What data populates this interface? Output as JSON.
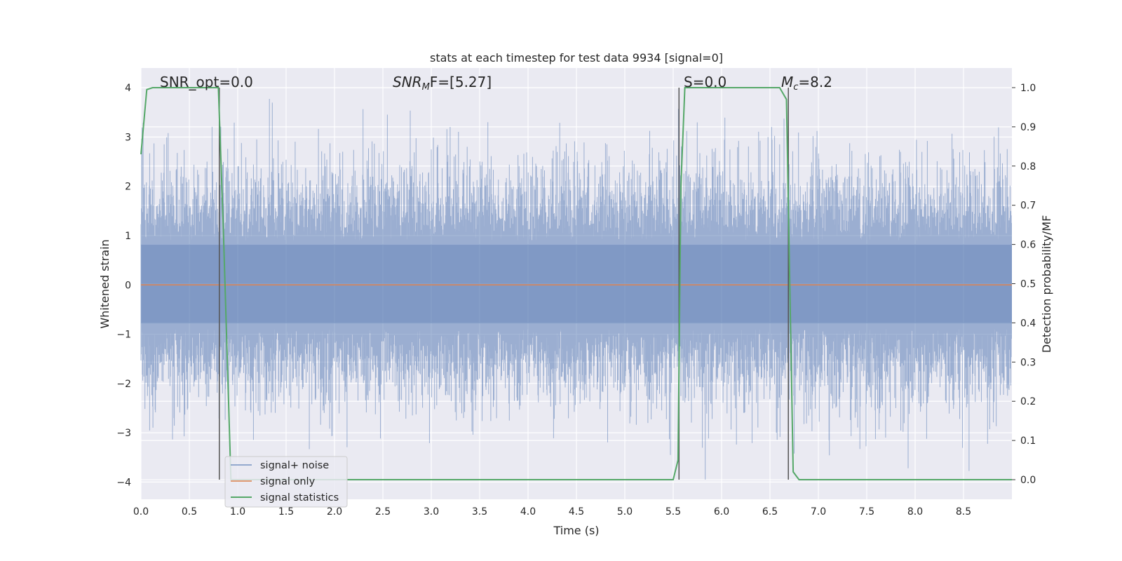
{
  "chart_data": {
    "type": "line",
    "title": "stats at each timestep for test data 9934 [signal=0]",
    "xlabel": "Time (s)",
    "ylabel": "Whitened strain",
    "ylabel_right": "Detection probability/MF",
    "xlim": [
      0.0,
      9.0
    ],
    "ylim": [
      -4.35,
      4.4
    ],
    "ylim_right": [
      -0.05,
      1.05
    ],
    "x_ticks": [
      "0.0",
      "0.5",
      "1.0",
      "1.5",
      "2.0",
      "2.5",
      "3.0",
      "3.5",
      "4.0",
      "4.5",
      "5.0",
      "5.5",
      "6.0",
      "6.5",
      "7.0",
      "7.5",
      "8.0",
      "8.5"
    ],
    "y_ticks": [
      "−4",
      "−3",
      "−2",
      "−1",
      "0",
      "1",
      "2",
      "3",
      "4"
    ],
    "y_right_ticks": [
      "0.0",
      "0.1",
      "0.2",
      "0.3",
      "0.4",
      "0.5",
      "0.6",
      "0.7",
      "0.8",
      "0.9",
      "1.0"
    ],
    "grid": true,
    "legend_position": "lower-left",
    "annotations": {
      "snr_opt": "SNR_opt=0.0",
      "snr_mf_main": "SNR",
      "snr_mf_sub": "M",
      "snr_mf_rest": "F=[5.27]",
      "s": "S=0.0",
      "mc_main": "M",
      "mc_sub": "c",
      "mc_rest": "=8.2"
    },
    "series": [
      {
        "name": "signal+ noise",
        "color": "#4c72b0",
        "description_values": "noise samples roughly within [-4, 4], sampled densely over 0-9 s",
        "envelope": {
          "peak_max": 3.95,
          "peak_min": -3.95
        }
      },
      {
        "name": "signal only",
        "color": "#dd8452",
        "x": [
          0.0,
          9.0
        ],
        "y": [
          0.0,
          0.0
        ]
      },
      {
        "name": "signal statistics",
        "color": "#55a868",
        "axis": "right",
        "x": [
          0.0,
          0.06,
          0.12,
          0.8,
          0.85,
          0.93,
          1.0,
          5.5,
          5.55,
          5.58,
          5.62,
          6.6,
          6.67,
          6.74,
          6.8,
          9.0
        ],
        "y": [
          0.83,
          0.995,
          1.0,
          1.0,
          0.65,
          0.0,
          0.0,
          0.0,
          0.05,
          0.75,
          1.0,
          1.0,
          0.97,
          0.02,
          0.0,
          0.0
        ]
      }
    ],
    "vertical_lines_x": [
      0.81,
      5.56,
      6.69
    ]
  }
}
